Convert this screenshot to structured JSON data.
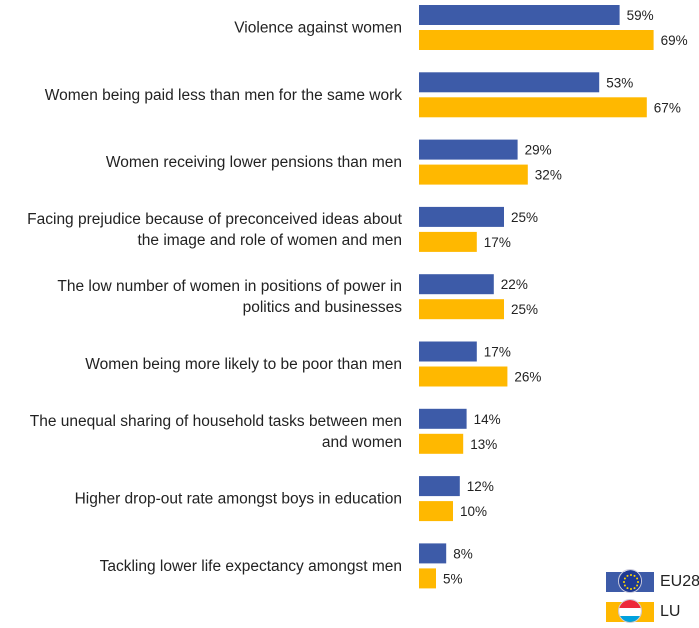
{
  "chart_data": {
    "type": "bar",
    "orientation": "horizontal",
    "categories": [
      "Violence against women",
      "Women being paid less than men for the same work",
      "Women receiving lower pensions than men",
      "Facing prejudice because of preconceived ideas about the image and role of women and men",
      "The low number of women in positions of power in politics and businesses",
      "Women being more likely to be poor than men",
      "The unequal sharing of household tasks between men and women",
      "Higher drop-out rate amongst boys in education",
      "Tackling lower life expectancy amongst men"
    ],
    "category_lines": [
      [
        "Violence against women"
      ],
      [
        "Women being paid less than men for the same work"
      ],
      [
        "Women receiving lower pensions than men"
      ],
      [
        "Facing prejudice because of preconceived ideas about",
        "the image and role of women and men"
      ],
      [
        "The low number of women in positions of power in",
        "politics and businesses"
      ],
      [
        "Women being more likely to be poor than men"
      ],
      [
        "The unequal sharing of household tasks between men",
        "and women"
      ],
      [
        "Higher drop-out rate amongst boys in education"
      ],
      [
        "Tackling lower life expectancy amongst men"
      ]
    ],
    "series": [
      {
        "name": "EU28",
        "color": "#3d5ba8",
        "values": [
          59,
          53,
          29,
          25,
          22,
          17,
          14,
          12,
          8
        ]
      },
      {
        "name": "LU",
        "color": "#ffb800",
        "values": [
          69,
          67,
          32,
          17,
          25,
          26,
          13,
          10,
          5
        ]
      }
    ],
    "value_suffix": "%",
    "xlim": [
      0,
      100
    ],
    "grid": false,
    "legend_position": "bottom-right"
  },
  "legend": {
    "items": [
      {
        "label": "EU28",
        "color": "#3d5ba8",
        "icon": "eu-flag-icon"
      },
      {
        "label": "LU",
        "color": "#ffb800",
        "icon": "luxembourg-flag-icon"
      }
    ]
  }
}
